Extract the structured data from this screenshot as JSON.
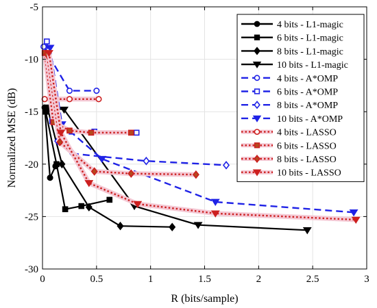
{
  "chart_data": {
    "type": "line",
    "xlabel": "R (bits/sample)",
    "ylabel": "Normalized MSE (dB)",
    "xlim": [
      0,
      3
    ],
    "ylim": [
      -30,
      -5
    ],
    "xticks": [
      0,
      0.5,
      1,
      1.5,
      2,
      2.5,
      3
    ],
    "yticks": [
      -5,
      -10,
      -15,
      -20,
      -25,
      -30
    ],
    "xtick_labels": [
      "0",
      "0.5",
      "1",
      "1.5",
      "2",
      "2.5",
      "3"
    ],
    "ytick_labels": [
      "-5",
      "-10",
      "-15",
      "-20",
      "-25",
      "-30"
    ],
    "grid": true,
    "legend_position": "top-right",
    "series": [
      {
        "name": "4 bits - L1-magic",
        "color": "#000000",
        "style": "solid",
        "marker": "circle",
        "filled": true,
        "x": [
          0.02,
          0.07,
          0.12
        ],
        "y": [
          -14.6,
          -21.3,
          -20.2
        ]
      },
      {
        "name": "6 bits - L1-magic",
        "color": "#000000",
        "style": "solid",
        "marker": "square",
        "filled": true,
        "x": [
          0.03,
          0.13,
          0.21,
          0.36,
          0.62
        ],
        "y": [
          -15.0,
          -20.0,
          -24.3,
          -24.0,
          -23.4
        ]
      },
      {
        "name": "8 bits - L1-magic",
        "color": "#000000",
        "style": "solid",
        "marker": "diamond",
        "filled": true,
        "x": [
          0.05,
          0.18,
          0.43,
          0.72,
          1.2
        ],
        "y": [
          -14.8,
          -20.0,
          -24.1,
          -25.9,
          -26.0
        ]
      },
      {
        "name": "10 bits - L1-magic",
        "color": "#000000",
        "style": "solid",
        "marker": "triangle-down",
        "filled": true,
        "x": [
          0.07,
          0.2,
          0.85,
          1.44,
          2.45
        ],
        "y": [
          -14.6,
          -14.8,
          -24.0,
          -25.8,
          -26.3
        ]
      },
      {
        "name": "4 bits - A*OMP",
        "color": "#1f22e6",
        "style": "dashed",
        "marker": "circle",
        "filled": false,
        "x": [
          0.01,
          0.25,
          0.5
        ],
        "y": [
          -8.8,
          -13.0,
          -13.0
        ]
      },
      {
        "name": "6 bits - A*OMP",
        "color": "#1f22e6",
        "style": "dashed",
        "marker": "square",
        "filled": false,
        "x": [
          0.04,
          0.09,
          0.27,
          0.48,
          0.87
        ],
        "y": [
          -8.3,
          -15.9,
          -16.9,
          -16.9,
          -17.0
        ]
      },
      {
        "name": "8 bits - A*OMP",
        "color": "#1f22e6",
        "style": "dashed",
        "marker": "diamond",
        "filled": false,
        "x": [
          0.05,
          0.14,
          0.28,
          0.96,
          1.7
        ],
        "y": [
          -9.2,
          -17.8,
          -19.0,
          -19.7,
          -20.1
        ]
      },
      {
        "name": "10 bits - A*OMP",
        "color": "#1f22e6",
        "style": "dashed",
        "marker": "triangle-down",
        "filled": true,
        "x": [
          0.07,
          0.18,
          0.55,
          1.6,
          2.88
        ],
        "y": [
          -8.9,
          -16.2,
          -19.5,
          -23.6,
          -24.6
        ]
      },
      {
        "name": "4 bits - LASSO",
        "color": "#cc1f1f",
        "style": "dotted",
        "marker": "circle",
        "filled": false,
        "x": [
          0.02,
          0.25,
          0.52
        ],
        "y": [
          -13.8,
          -13.8,
          -13.8
        ]
      },
      {
        "name": "6 bits - LASSO",
        "color": "#cc1f1f",
        "style": "dotted",
        "marker": "square",
        "filled": true,
        "fillcolor": "#b54a1e",
        "x": [
          0.02,
          0.1,
          0.25,
          0.45,
          0.82
        ],
        "y": [
          -9.4,
          -16.0,
          -16.8,
          -17.0,
          -17.0
        ]
      },
      {
        "name": "8 bits - LASSO",
        "color": "#cc1f1f",
        "style": "dotted",
        "marker": "diamond",
        "filled": true,
        "fillcolor": "#b54a1e",
        "x": [
          0.04,
          0.16,
          0.48,
          0.82,
          1.42
        ],
        "y": [
          -9.5,
          -17.9,
          -20.7,
          -20.9,
          -21.0
        ]
      },
      {
        "name": "10 bits - LASSO",
        "color": "#cc1f1f",
        "style": "dotted",
        "marker": "triangle-down",
        "filled": true,
        "fillcolor": "#cc1f1f",
        "x": [
          0.06,
          0.17,
          0.43,
          0.88,
          1.6,
          2.9
        ],
        "y": [
          -9.4,
          -17.0,
          -21.8,
          -23.8,
          -24.7,
          -25.3
        ]
      }
    ]
  }
}
